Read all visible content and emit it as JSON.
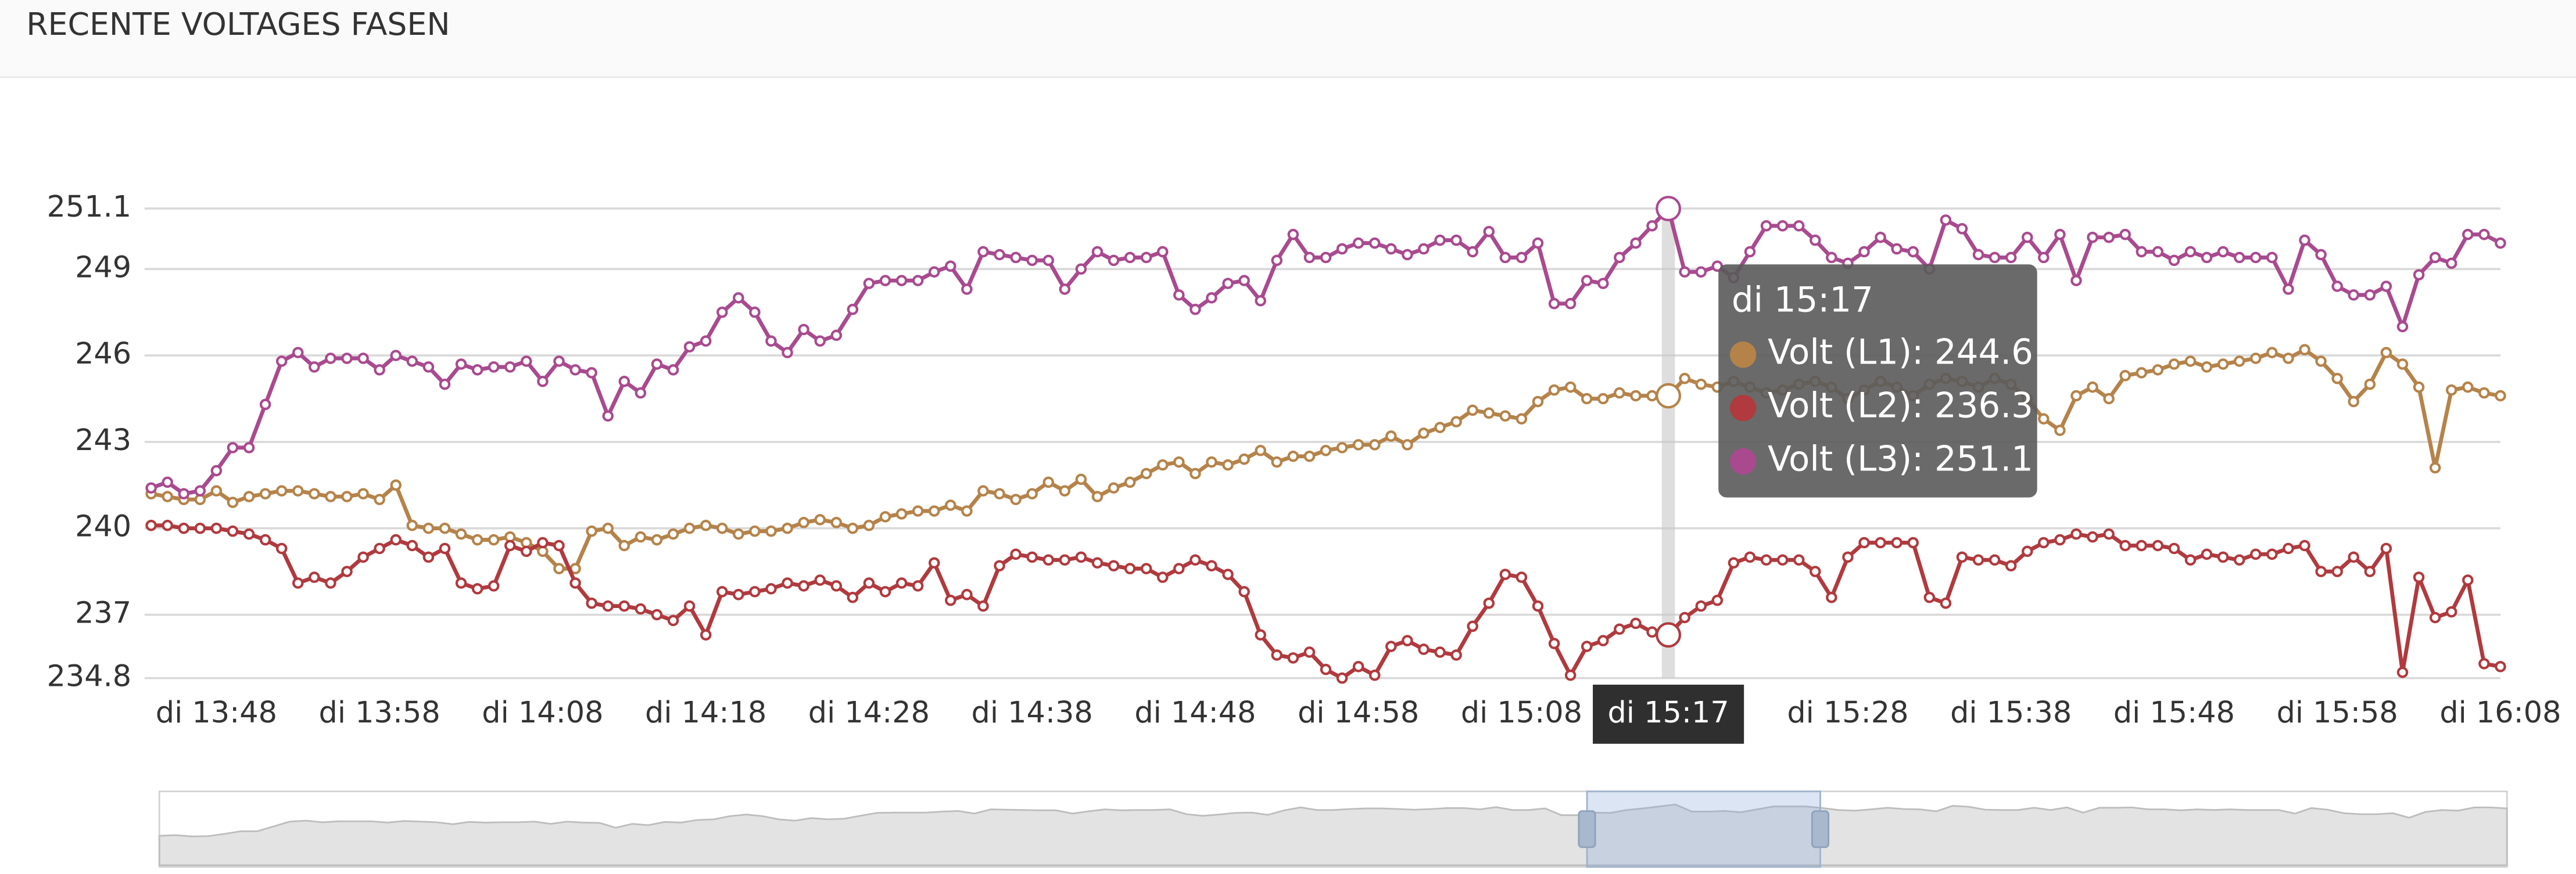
{
  "header": {
    "title": "RECENTE VOLTAGES FASEN"
  },
  "chart_data": {
    "type": "line",
    "categories": [
      null,
      null,
      null,
      null,
      "di 13:48",
      null,
      null,
      null,
      null,
      null,
      null,
      null,
      null,
      null,
      "di 13:58",
      null,
      null,
      null,
      null,
      null,
      null,
      null,
      null,
      null,
      "di 14:08",
      null,
      null,
      null,
      null,
      null,
      null,
      null,
      null,
      null,
      "di 14:18",
      null,
      null,
      null,
      null,
      null,
      null,
      null,
      null,
      null,
      "di 14:28",
      null,
      null,
      null,
      null,
      null,
      null,
      null,
      null,
      null,
      "di 14:38",
      null,
      null,
      null,
      null,
      null,
      null,
      null,
      null,
      null,
      "di 14:48",
      null,
      null,
      null,
      null,
      null,
      null,
      null,
      null,
      null,
      "di 14:58",
      null,
      null,
      null,
      null,
      null,
      null,
      null,
      null,
      null,
      "di 15:08",
      null,
      null,
      null,
      null,
      null,
      null,
      null,
      null,
      "di 15:17",
      null,
      null,
      null,
      null,
      null,
      null,
      null,
      null,
      null,
      null,
      "di 15:28",
      null,
      null,
      null,
      null,
      null,
      null,
      null,
      null,
      null,
      "di 15:38",
      null,
      null,
      null,
      null,
      null,
      null,
      null,
      null,
      null,
      "di 15:48",
      null,
      null,
      null,
      null,
      null,
      null,
      null,
      null,
      null,
      "di 15:58",
      null,
      null,
      null,
      null,
      null,
      null,
      null,
      null,
      null,
      "di 16:08"
    ],
    "series": [
      {
        "name": "Volt (L1)",
        "color": "#b5834a",
        "values": [
          241.2,
          241.1,
          241.0,
          241.0,
          241.3,
          240.9,
          241.1,
          241.2,
          241.3,
          241.3,
          241.2,
          241.1,
          241.1,
          241.2,
          241.0,
          241.5,
          240.1,
          240.0,
          240.0,
          239.8,
          239.6,
          239.6,
          239.7,
          239.5,
          239.2,
          238.6,
          238.6,
          239.9,
          240.0,
          239.4,
          239.7,
          239.6,
          239.8,
          240.0,
          240.1,
          240.0,
          239.8,
          239.9,
          239.9,
          240.0,
          240.2,
          240.3,
          240.2,
          240.0,
          240.1,
          240.4,
          240.5,
          240.6,
          240.6,
          240.8,
          240.6,
          241.3,
          241.2,
          241.0,
          241.2,
          241.6,
          241.3,
          241.7,
          241.1,
          241.4,
          241.6,
          241.9,
          242.2,
          242.3,
          241.9,
          242.3,
          242.2,
          242.4,
          242.7,
          242.3,
          242.5,
          242.5,
          242.7,
          242.8,
          242.9,
          242.9,
          243.2,
          242.9,
          243.3,
          243.5,
          243.7,
          244.1,
          244.0,
          243.9,
          243.8,
          244.4,
          244.8,
          244.9,
          244.5,
          244.5,
          244.7,
          244.6,
          244.6,
          244.6,
          245.2,
          245.0,
          244.9,
          245.1,
          244.9,
          244.7,
          244.8,
          245.0,
          245.1,
          244.9,
          244.5,
          244.8,
          245.1,
          244.9,
          244.6,
          245.0,
          245.2,
          245.1,
          244.9,
          245.2,
          245.0,
          244.5,
          243.8,
          243.4,
          244.6,
          244.9,
          244.5,
          245.3,
          245.4,
          245.5,
          245.7,
          245.8,
          245.6,
          245.7,
          245.8,
          245.9,
          246.1,
          245.9,
          246.2,
          245.8,
          245.2,
          244.4,
          245.0,
          246.1,
          245.7,
          244.9,
          242.1,
          244.8,
          244.9,
          244.7,
          244.6
        ]
      },
      {
        "name": "Volt (L2)",
        "color": "#b03a3e",
        "values": [
          240.1,
          240.1,
          240.0,
          240.0,
          240.0,
          239.9,
          239.8,
          239.6,
          239.3,
          238.1,
          238.3,
          238.1,
          238.5,
          239.0,
          239.3,
          239.6,
          239.4,
          239.0,
          239.3,
          238.1,
          237.9,
          238.0,
          239.4,
          239.2,
          239.5,
          239.4,
          238.1,
          237.4,
          237.3,
          237.3,
          237.2,
          237.0,
          236.8,
          237.3,
          236.3,
          237.8,
          237.7,
          237.8,
          237.9,
          238.1,
          238.0,
          238.2,
          238.0,
          237.6,
          238.1,
          237.8,
          238.1,
          238.0,
          238.8,
          237.5,
          237.7,
          237.3,
          238.7,
          239.1,
          239.0,
          238.9,
          238.9,
          239.0,
          238.8,
          238.7,
          238.6,
          238.6,
          238.3,
          238.6,
          238.9,
          238.7,
          238.4,
          237.8,
          236.3,
          235.6,
          235.5,
          235.7,
          235.1,
          234.8,
          235.2,
          234.9,
          235.9,
          236.1,
          235.8,
          235.7,
          235.6,
          236.6,
          237.4,
          238.4,
          238.3,
          237.3,
          236.0,
          234.9,
          235.9,
          236.1,
          236.5,
          236.7,
          236.4,
          236.3,
          236.9,
          237.3,
          237.5,
          238.8,
          239.0,
          238.9,
          238.9,
          238.9,
          238.5,
          237.6,
          239.0,
          239.5,
          239.5,
          239.5,
          239.5,
          237.6,
          237.4,
          239.0,
          238.9,
          238.9,
          238.7,
          239.2,
          239.5,
          239.6,
          239.8,
          239.7,
          239.8,
          239.4,
          239.4,
          239.4,
          239.3,
          238.9,
          239.1,
          239.0,
          238.9,
          239.1,
          239.1,
          239.3,
          239.4,
          238.5,
          238.5,
          239.0,
          238.5,
          239.3,
          235.0,
          238.3,
          236.9,
          237.1,
          238.2,
          235.3,
          235.2
        ]
      },
      {
        "name": "Volt (L3)",
        "color": "#a94a8f",
        "values": [
          241.4,
          241.6,
          241.2,
          241.3,
          242.0,
          242.8,
          242.8,
          244.3,
          245.8,
          246.1,
          245.6,
          245.9,
          245.9,
          245.9,
          245.5,
          246.0,
          245.8,
          245.6,
          245.0,
          245.7,
          245.5,
          245.6,
          245.6,
          245.8,
          245.1,
          245.8,
          245.5,
          245.4,
          243.9,
          245.1,
          244.7,
          245.7,
          245.5,
          246.3,
          246.5,
          247.5,
          248.0,
          247.5,
          246.5,
          246.1,
          246.9,
          246.5,
          246.7,
          247.6,
          248.5,
          248.6,
          248.6,
          248.6,
          248.9,
          249.1,
          248.3,
          249.6,
          249.5,
          249.4,
          249.3,
          249.3,
          248.3,
          249.0,
          249.6,
          249.3,
          249.4,
          249.4,
          249.6,
          248.1,
          247.6,
          248.0,
          248.5,
          248.6,
          247.9,
          249.3,
          250.2,
          249.4,
          249.4,
          249.7,
          249.9,
          249.9,
          249.7,
          249.5,
          249.7,
          250.0,
          250.0,
          249.6,
          250.3,
          249.4,
          249.4,
          249.9,
          247.8,
          247.8,
          248.6,
          248.5,
          249.4,
          249.9,
          250.5,
          251.1,
          248.9,
          248.9,
          249.1,
          248.7,
          249.6,
          250.5,
          250.5,
          250.5,
          250.0,
          249.4,
          249.2,
          249.6,
          250.1,
          249.7,
          249.6,
          249.0,
          250.7,
          250.4,
          249.5,
          249.4,
          249.4,
          250.1,
          249.4,
          250.2,
          248.6,
          250.1,
          250.1,
          250.2,
          249.6,
          249.6,
          249.3,
          249.6,
          249.4,
          249.6,
          249.4,
          249.4,
          249.4,
          248.3,
          250.0,
          249.5,
          248.4,
          248.1,
          248.1,
          248.4,
          247.0,
          248.8,
          249.4,
          249.2,
          250.2,
          250.2,
          249.9
        ]
      }
    ],
    "ylim": [
      234.8,
      251.1
    ],
    "yticks": [
      234.8,
      237,
      240,
      243,
      246,
      249,
      251.1
    ],
    "grid": true
  }
}
